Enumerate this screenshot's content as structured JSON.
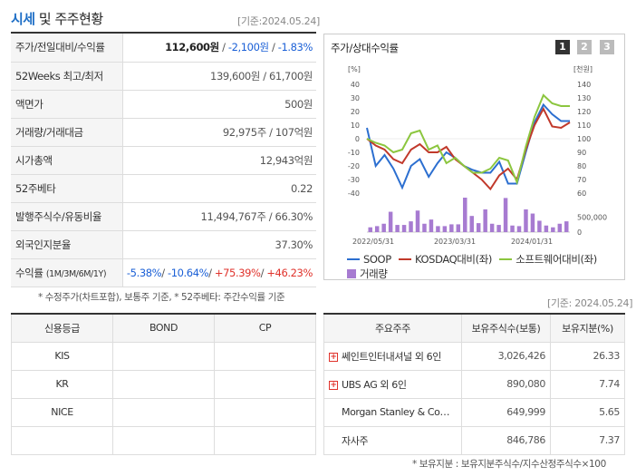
{
  "header": {
    "title_accent": "시세",
    "title_rest": " 및 주주현황",
    "base_date": "[기준:2024.05.24]"
  },
  "stock_info": {
    "rows": [
      {
        "label": "주가/전일대비/수익률",
        "price": "112,600원",
        "change": "-2,100원",
        "rate": "-1.83%"
      },
      {
        "label": "52Weeks 최고/최저",
        "value": "139,600원 / 61,700원"
      },
      {
        "label": "액면가",
        "value": "500원"
      },
      {
        "label": "거래량/거래대금",
        "value": "92,975주 / 107억원"
      },
      {
        "label": "시가총액",
        "value": "12,943억원"
      },
      {
        "label": "52주베타",
        "value": "0.22"
      },
      {
        "label": "발행주식수/유동비율",
        "value": "11,494,767주 / 66.30%"
      },
      {
        "label": "외국인지분율",
        "value": "37.30%"
      },
      {
        "label": "수익률",
        "sublabel": "(1M/3M/6M/1Y)",
        "r1": "-5.38%",
        "r2": "-10.64%",
        "r3": "+75.39%",
        "r4": "+46.23%"
      }
    ],
    "note": "* 수정주가(차트포함), 보통주 기준, * 52주베타: 주간수익률 기준"
  },
  "chart_panel": {
    "title": "주가/상대수익률",
    "pages": [
      "1",
      "2",
      "3"
    ]
  },
  "chart_data": {
    "type": "line",
    "left_axis": {
      "unit": "[%]",
      "ticks": [
        40,
        30,
        20,
        10,
        0,
        -10,
        -20,
        -30,
        -40
      ]
    },
    "right_axis": {
      "unit": "[천원]",
      "ticks": [
        140,
        130,
        120,
        110,
        100,
        90,
        80,
        70,
        60
      ]
    },
    "volume_axis": {
      "ticks": [
        "500,000",
        "0"
      ],
      "max": 1000000
    },
    "x_ticks": [
      "2022/05/31",
      "2023/03/31",
      "2024/01/31"
    ],
    "series": [
      {
        "name": "SOOP",
        "color": "#2c6fd0",
        "values": [
          8,
          -20,
          -12,
          -22,
          -36,
          -20,
          -15,
          -28,
          -18,
          -10,
          -14,
          -20,
          -23,
          -25,
          -25,
          -17,
          -33,
          -33,
          -10,
          12,
          25,
          18,
          13,
          13
        ]
      },
      {
        "name": "KOSDAQ대비(좌)",
        "color": "#c1392b",
        "values": [
          0,
          -5,
          -8,
          -15,
          -18,
          -8,
          -4,
          -10,
          -10,
          -6,
          -15,
          -20,
          -25,
          -30,
          -37,
          -27,
          -22,
          -30,
          -8,
          10,
          22,
          9,
          8,
          12
        ]
      },
      {
        "name": "소프트웨어대비(좌)",
        "color": "#8cc63f",
        "values": [
          0,
          -3,
          -5,
          -10,
          -8,
          4,
          6,
          -8,
          -5,
          -18,
          -14,
          -20,
          -25,
          -25,
          -22,
          -14,
          -16,
          -32,
          -6,
          16,
          32,
          26,
          24,
          24
        ]
      }
    ],
    "volume": {
      "name": "거래량",
      "color": "#a77bd1",
      "values": [
        80000,
        100000,
        140000,
        340000,
        120000,
        120000,
        180000,
        360000,
        140000,
        210000,
        100000,
        100000,
        130000,
        130000,
        720000,
        270000,
        150000,
        380000,
        140000,
        120000,
        570000,
        110000,
        100000,
        380000,
        310000,
        190000,
        110000,
        80000,
        140000,
        180000
      ]
    }
  },
  "credit": {
    "headers": [
      "신용등급",
      "BOND",
      "CP"
    ],
    "rows": [
      {
        "agency": "KIS",
        "bond": "",
        "cp": ""
      },
      {
        "agency": "KR",
        "bond": "",
        "cp": ""
      },
      {
        "agency": "NICE",
        "bond": "",
        "cp": ""
      }
    ]
  },
  "shareholders": {
    "base_date": "[기준: 2024.05.24]",
    "headers": [
      "주요주주",
      "보유주식수(보통)",
      "보유지분(%)"
    ],
    "rows": [
      {
        "name": "쎄인트인터내셔널 외 6인",
        "shares": "3,026,426",
        "pct": "26.33",
        "expandable": true
      },
      {
        "name": "UBS AG 외 6인",
        "shares": "890,080",
        "pct": "7.74",
        "expandable": true
      },
      {
        "name": "Morgan Stanley & Co…",
        "shares": "649,999",
        "pct": "5.65",
        "expandable": false
      },
      {
        "name": "자사주",
        "shares": "846,786",
        "pct": "7.37",
        "expandable": false
      }
    ],
    "note": "* 보유지분 : 보유지분주식수/지수산정주식수×100"
  }
}
